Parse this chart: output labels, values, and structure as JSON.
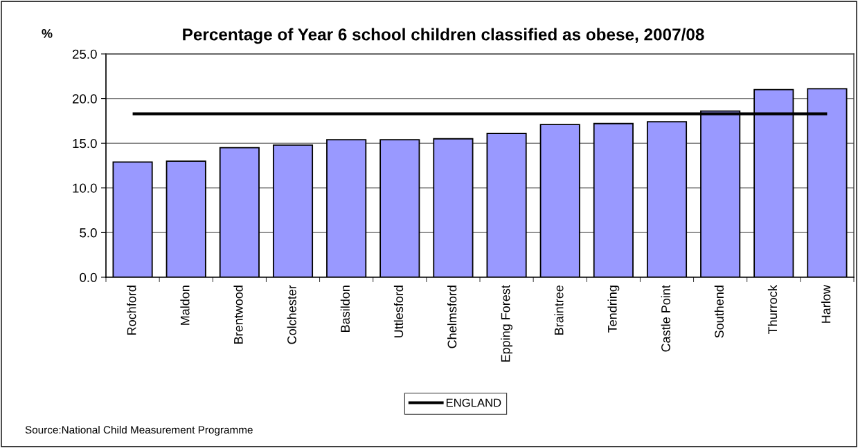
{
  "chart_data": {
    "type": "bar",
    "title": "Percentage of Year 6 school children classified as obese, 2007/08",
    "ylabel": "%",
    "categories": [
      "Rochford",
      "Maldon",
      "Brentwood",
      "Colchester",
      "Basildon",
      "Uttlesford",
      "Chelmsford",
      "Epping Forest",
      "Braintree",
      "Tendring",
      "Castle Point",
      "Southend",
      "Thurrock",
      "Harlow"
    ],
    "series": [
      {
        "color": "#9999ff",
        "values": [
          12.9,
          13.0,
          14.5,
          14.8,
          15.4,
          15.4,
          15.5,
          16.1,
          17.1,
          17.2,
          17.4,
          18.6,
          21.0,
          21.1
        ]
      },
      {
        "type": "line",
        "name": "ENGLAND",
        "color": "#000000",
        "values": [
          18.3,
          18.3,
          18.3,
          18.3,
          18.3,
          18.3,
          18.3,
          18.3,
          18.3,
          18.3,
          18.3,
          18.3,
          18.3,
          18.3
        ]
      }
    ],
    "ylim": [
      0,
      25
    ],
    "yticks": [
      {
        "value": 0,
        "label": "0.0"
      },
      {
        "value": 5,
        "label": "5.0"
      },
      {
        "value": 10,
        "label": "10.0"
      },
      {
        "value": 15,
        "label": "15.0"
      },
      {
        "value": 20,
        "label": "20.0"
      },
      {
        "value": 25,
        "label": "25.0"
      }
    ],
    "grid": "y",
    "legend": "bottom",
    "line_style": "solid",
    "annotations": [
      "Source:National Child Measurement Programme"
    ]
  }
}
